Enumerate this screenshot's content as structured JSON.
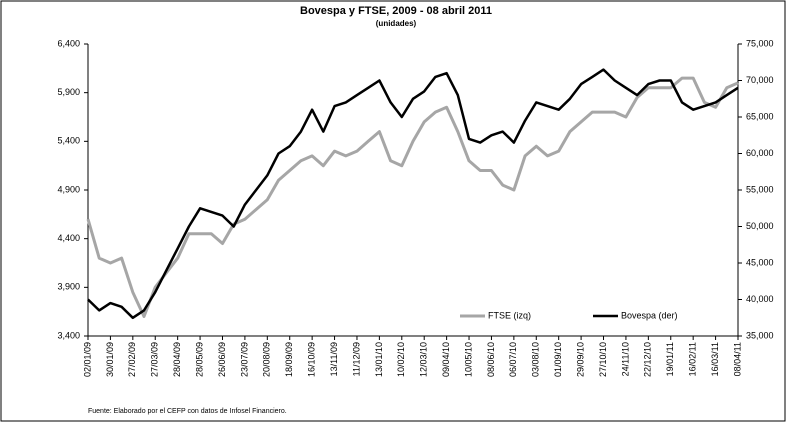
{
  "chart_data": {
    "type": "line",
    "title": "Bovespa y FTSE, 2009 - 08 abril 2011",
    "subtitle": "(unidades)",
    "source": "Fuente: Elaborado por el CEFP con datos de Infosel Financiero.",
    "categories": [
      "02/01/09",
      null,
      "30/01/09",
      null,
      "27/02/09",
      null,
      "27/03/09",
      null,
      "28/04/09",
      null,
      "28/05/09",
      null,
      "26/06/09",
      null,
      "23/07/09",
      null,
      "20/08/09",
      null,
      "18/09/09",
      null,
      "16/10/09",
      null,
      "13/11/09",
      null,
      "11/12/09",
      null,
      "13/01/10",
      null,
      "10/02/10",
      null,
      "12/03/10",
      null,
      "09/04/10",
      null,
      "10/05/10",
      null,
      "08/06/10",
      null,
      "06/07/10",
      null,
      "03/08/10",
      null,
      "01/09/10",
      null,
      "29/09/10",
      null,
      "27/10/10",
      null,
      "24/11/10",
      null,
      "22/12/10",
      null,
      "19/01/11",
      null,
      "16/02/11",
      null,
      "16/03/11",
      null,
      "08/04/11"
    ],
    "series": [
      {
        "name": "FTSE (izq)",
        "color": "#a6a6a6",
        "axis": "y",
        "values": [
          4600,
          4200,
          4150,
          4200,
          3850,
          3600,
          3900,
          4050,
          4200,
          4450,
          4450,
          4450,
          4350,
          4550,
          4600,
          4700,
          4800,
          5000,
          5100,
          5200,
          5250,
          5150,
          5300,
          5250,
          5300,
          5400,
          5500,
          5200,
          5150,
          5400,
          5600,
          5700,
          5750,
          5500,
          5200,
          5100,
          5100,
          4950,
          4900,
          5250,
          5350,
          5250,
          5300,
          5500,
          5600,
          5700,
          5700,
          5700,
          5650,
          5850,
          5950,
          5950,
          5950,
          6050,
          6050,
          5800,
          5750,
          5950,
          6000
        ]
      },
      {
        "name": "Bovespa (der)",
        "color": "#000000",
        "axis": "y2",
        "values": [
          40000,
          38500,
          39500,
          39000,
          37500,
          38500,
          41000,
          44000,
          47000,
          50000,
          52500,
          52000,
          51500,
          50000,
          53000,
          55000,
          57000,
          60000,
          61000,
          63000,
          66000,
          63000,
          66500,
          67000,
          68000,
          69000,
          70000,
          67000,
          65000,
          67500,
          68500,
          70500,
          71000,
          68000,
          62000,
          61500,
          62500,
          63000,
          61500,
          64500,
          67000,
          66500,
          66000,
          67500,
          69500,
          70500,
          71500,
          70000,
          69000,
          68000,
          69500,
          70000,
          70000,
          67000,
          66000,
          66500,
          67000,
          68000,
          69000
        ]
      }
    ],
    "ylim": [
      3400,
      6400
    ],
    "yticks": [
      {
        "value": 3400,
        "label": "3,400"
      },
      {
        "value": 3900,
        "label": "3,900"
      },
      {
        "value": 4400,
        "label": "4,400"
      },
      {
        "value": 4900,
        "label": "4,900"
      },
      {
        "value": 5400,
        "label": "5,400"
      },
      {
        "value": 5900,
        "label": "5,900"
      },
      {
        "value": 6400,
        "label": "6,400"
      }
    ],
    "y2lim": [
      35000,
      75000
    ],
    "y2ticks": [
      {
        "value": 35000,
        "label": "35,000"
      },
      {
        "value": 40000,
        "label": "40,000"
      },
      {
        "value": 45000,
        "label": "45,000"
      },
      {
        "value": 50000,
        "label": "50,000"
      },
      {
        "value": 55000,
        "label": "55,000"
      },
      {
        "value": 60000,
        "label": "60,000"
      },
      {
        "value": 65000,
        "label": "65,000"
      },
      {
        "value": 70000,
        "label": "70,000"
      },
      {
        "value": 75000,
        "label": "75,000"
      }
    ],
    "legend": "lower right",
    "grid": false
  }
}
